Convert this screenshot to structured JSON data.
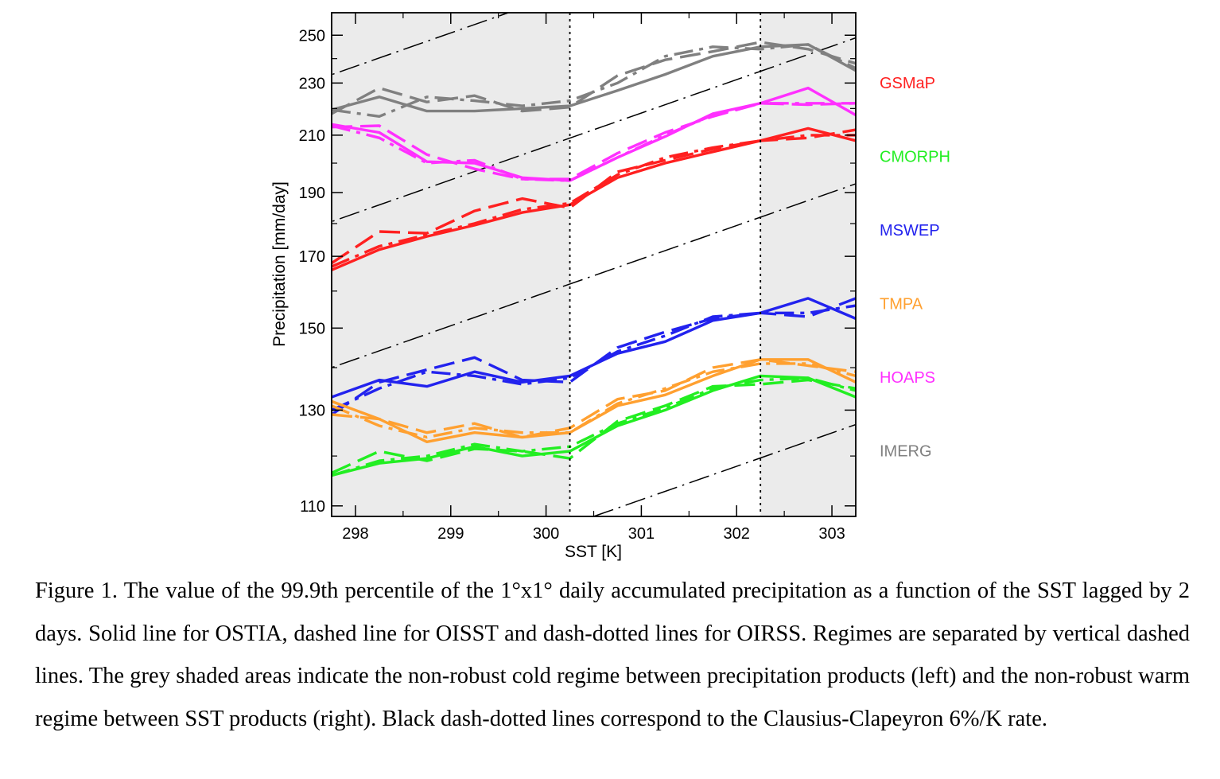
{
  "chart_data": {
    "type": "line",
    "xlabel": "SST [K]",
    "ylabel": "Precipitation [mm/day]",
    "xlim": [
      297.75,
      303.25
    ],
    "ylim": [
      108,
      260
    ],
    "y_scale": "log",
    "xticks": [
      298,
      299,
      300,
      301,
      302,
      303
    ],
    "yticks": [
      110,
      130,
      150,
      170,
      190,
      210,
      230,
      250
    ],
    "grid": false,
    "regime_boundaries": [
      300.25,
      302.25
    ],
    "shaded_regions": [
      [
        297.75,
        300.25
      ],
      [
        302.25,
        303.25
      ]
    ],
    "shading_color": "#ebebeb",
    "legend_position": "right",
    "line_styles": {
      "OSTIA": "solid",
      "OISST": "dashed",
      "OIRSS": "dash-dotted"
    },
    "series": [
      {
        "name": "GSMaP",
        "color": "#ff2020",
        "x": [
          297.75,
          298.25,
          298.75,
          299.25,
          299.75,
          300.25,
          300.75,
          301.25,
          301.75,
          302.25,
          302.75,
          303.25
        ],
        "values": {
          "OSTIA": [
            166,
            172,
            176,
            179.5,
            183.5,
            186,
            195,
            200,
            204,
            208,
            212.5,
            208
          ],
          "OISST": [
            168,
            177.5,
            177,
            184,
            188,
            185,
            197,
            201,
            205,
            208,
            209,
            212
          ],
          "OIRSS": [
            167,
            173,
            176.5,
            180,
            184.5,
            186.5,
            196,
            202,
            205.5,
            208,
            210,
            210
          ]
        }
      },
      {
        "name": "CMORPH",
        "color": "#22ee22",
        "x": [
          297.75,
          298.25,
          298.75,
          299.25,
          299.75,
          300.25,
          300.75,
          301.25,
          301.75,
          302.25,
          302.75,
          303.25
        ],
        "values": {
          "OSTIA": [
            116,
            118.5,
            119.5,
            122,
            120,
            121,
            126.5,
            130,
            134.5,
            138,
            137.5,
            133
          ],
          "OISST": [
            116.5,
            121,
            119,
            121.5,
            121,
            119.5,
            127.5,
            131,
            135.5,
            136,
            137,
            135
          ],
          "OIRSS": [
            116,
            119,
            120,
            122.5,
            121,
            122,
            127,
            130.5,
            135,
            137,
            137.5,
            134.5
          ]
        }
      },
      {
        "name": "MSWEP",
        "color": "#2222ee",
        "x": [
          297.75,
          298.25,
          298.75,
          299.25,
          299.75,
          300.25,
          300.75,
          301.25,
          301.75,
          302.25,
          302.75,
          303.25
        ],
        "values": {
          "OSTIA": [
            133,
            137,
            135.5,
            139,
            136.5,
            138,
            143.5,
            146.5,
            152,
            154,
            158,
            152.5
          ],
          "OISST": [
            129,
            136.5,
            139.5,
            142.5,
            137,
            136.5,
            145,
            149,
            152.5,
            154,
            153,
            158
          ],
          "OIRSS": [
            130,
            135,
            139,
            138,
            136,
            137.5,
            144,
            148,
            153,
            154,
            154,
            156
          ]
        }
      },
      {
        "name": "TMPA",
        "color": "#ffa030",
        "x": [
          297.75,
          298.25,
          298.75,
          299.25,
          299.75,
          300.25,
          300.75,
          301.25,
          301.75,
          302.25,
          302.75,
          303.25
        ],
        "values": {
          "OSTIA": [
            132,
            128,
            123,
            125,
            124,
            125,
            131,
            133.5,
            138,
            142,
            142,
            136.5
          ],
          "OISST": [
            129,
            128,
            125,
            127,
            124,
            126,
            132.5,
            134.5,
            140,
            142,
            140.5,
            139
          ],
          "OIRSS": [
            131,
            126.5,
            124,
            126,
            125,
            125,
            131.5,
            135,
            139,
            141,
            141,
            138
          ]
        }
      },
      {
        "name": "HOAPS",
        "color": "#ff30ff",
        "x": [
          297.75,
          298.25,
          298.75,
          299.25,
          299.75,
          300.25,
          300.75,
          301.25,
          301.75,
          302.25,
          302.75,
          303.25
        ],
        "values": {
          "OSTIA": [
            214,
            211,
            200.5,
            200,
            195,
            194,
            202,
            209.5,
            218,
            222,
            228,
            217.5
          ],
          "OISST": [
            213,
            213.5,
            203,
            198,
            194.5,
            194.5,
            203.5,
            211,
            217,
            222,
            221.5,
            222
          ],
          "OIRSS": [
            213.5,
            209,
            200,
            201,
            194.5,
            194,
            202,
            210,
            217.5,
            222,
            222,
            222
          ]
        }
      },
      {
        "name": "IMERG",
        "color": "#808080",
        "x": [
          297.75,
          298.25,
          298.75,
          299.25,
          299.75,
          300.25,
          300.75,
          301.25,
          301.75,
          302.25,
          302.75,
          303.25
        ],
        "values": {
          "OSTIA": [
            219.5,
            224.5,
            219,
            219,
            220,
            221,
            227,
            233.5,
            241,
            245,
            246,
            235
          ],
          "OISST": [
            218,
            228,
            222.5,
            225,
            219,
            220.5,
            233,
            239.5,
            243,
            247,
            244,
            238
          ],
          "OIRSS": [
            219.5,
            217,
            224.5,
            223,
            221,
            223,
            230,
            241,
            245,
            244,
            246,
            236
          ]
        }
      }
    ]
  },
  "caption": "Figure 1. The value of the 99.9th percentile of the 1°x1° daily accumulated precipitation as a function of the SST lagged by 2 days. Solid line for OSTIA, dashed line for OISST and dash-dotted lines for OIRSS. Regimes are separated by vertical dashed lines. The grey shaded areas indicate the non-robust cold regime between precipitation products (left) and the non-robust warm regime between SST products (right). Black dash-dotted lines correspond to the Clausius-Clapeyron 6%/K rate."
}
